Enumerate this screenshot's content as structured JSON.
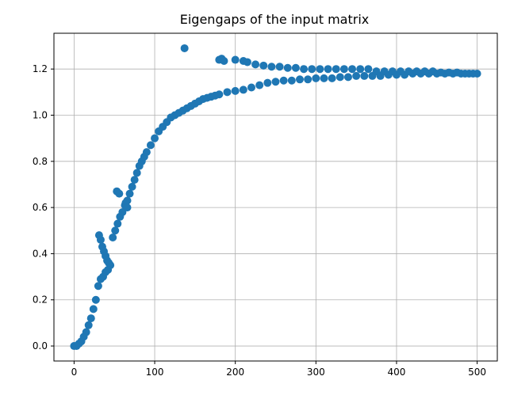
{
  "chart_data": {
    "type": "scatter",
    "title": "Eigengaps of the input matrix",
    "xlabel": "",
    "ylabel": "",
    "xlim": [
      -25,
      525
    ],
    "ylim": [
      -0.065,
      1.355
    ],
    "grid": true,
    "color": "#1f77b4",
    "xticks": [
      0,
      100,
      200,
      300,
      400,
      500
    ],
    "xtick_labels": [
      "0",
      "100",
      "200",
      "300",
      "400",
      "500"
    ],
    "yticks": [
      0.0,
      0.2,
      0.4,
      0.6,
      0.8,
      1.0,
      1.2
    ],
    "ytick_labels": [
      "0.0",
      "0.2",
      "0.4",
      "0.6",
      "0.8",
      "1.0",
      "1.2"
    ],
    "series": [
      {
        "name": "main",
        "x": [
          0,
          3,
          6,
          9,
          12,
          15,
          18,
          21,
          24,
          27,
          30,
          33,
          36,
          39,
          42,
          45,
          48,
          51,
          54,
          57,
          60,
          63,
          66,
          69,
          72,
          75,
          78,
          81,
          84,
          87,
          90,
          95,
          100,
          105,
          110,
          115,
          120,
          125,
          130,
          135,
          140,
          145,
          150,
          155,
          160,
          165,
          170,
          175,
          180,
          190,
          200,
          210,
          220,
          230,
          240,
          250,
          260,
          270,
          280,
          290,
          300,
          310,
          320,
          330,
          340,
          350,
          360,
          370,
          380,
          390,
          400,
          410,
          420,
          430,
          440,
          450,
          460,
          470,
          480,
          490,
          500
        ],
        "y": [
          0.0,
          0.0,
          0.01,
          0.02,
          0.04,
          0.06,
          0.09,
          0.12,
          0.16,
          0.2,
          0.26,
          0.29,
          0.3,
          0.32,
          0.33,
          0.35,
          0.47,
          0.5,
          0.53,
          0.56,
          0.58,
          0.61,
          0.63,
          0.66,
          0.69,
          0.72,
          0.75,
          0.78,
          0.8,
          0.82,
          0.84,
          0.87,
          0.9,
          0.93,
          0.95,
          0.97,
          0.99,
          1.0,
          1.01,
          1.02,
          1.03,
          1.04,
          1.05,
          1.06,
          1.07,
          1.075,
          1.08,
          1.085,
          1.09,
          1.1,
          1.105,
          1.11,
          1.12,
          1.13,
          1.14,
          1.145,
          1.15,
          1.15,
          1.155,
          1.155,
          1.16,
          1.16,
          1.16,
          1.165,
          1.165,
          1.17,
          1.17,
          1.17,
          1.17,
          1.175,
          1.175,
          1.175,
          1.18,
          1.18,
          1.18,
          1.18,
          1.18,
          1.18,
          1.18,
          1.18,
          1.18
        ]
      },
      {
        "name": "secondary",
        "x": [
          31,
          33,
          35,
          37,
          39,
          41,
          43,
          53,
          56,
          64,
          66,
          137,
          180,
          183,
          186,
          200,
          210,
          215,
          225,
          235,
          245,
          255,
          265,
          275,
          285,
          295,
          305,
          315,
          325,
          335,
          345,
          355,
          365,
          375,
          385,
          395,
          405,
          415,
          425,
          435,
          445,
          455,
          465,
          475,
          485,
          495
        ],
        "y": [
          0.48,
          0.46,
          0.43,
          0.41,
          0.39,
          0.37,
          0.36,
          0.67,
          0.66,
          0.62,
          0.6,
          1.29,
          1.24,
          1.245,
          1.235,
          1.24,
          1.235,
          1.23,
          1.22,
          1.215,
          1.21,
          1.21,
          1.205,
          1.205,
          1.2,
          1.2,
          1.2,
          1.2,
          1.2,
          1.2,
          1.2,
          1.2,
          1.2,
          1.19,
          1.19,
          1.19,
          1.19,
          1.19,
          1.19,
          1.19,
          1.19,
          1.185,
          1.185,
          1.185,
          1.18,
          1.18
        ]
      }
    ]
  }
}
